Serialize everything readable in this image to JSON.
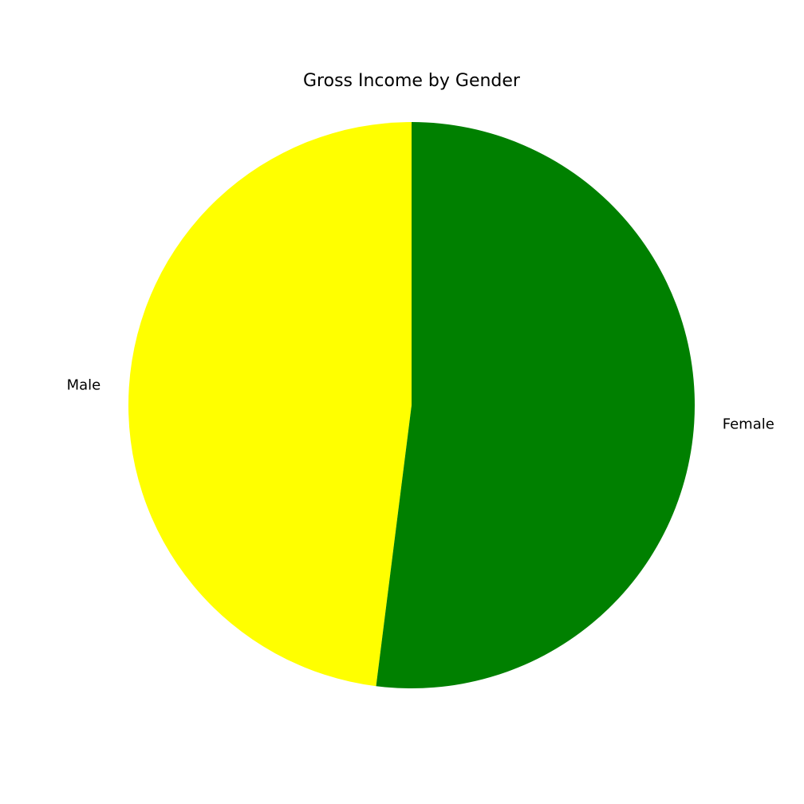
{
  "chart_data": {
    "type": "pie",
    "title": "Gross Income by Gender",
    "start_angle_deg": 90,
    "direction": "counterclockwise",
    "slices": [
      {
        "label": "Male",
        "value": 48.0,
        "color": "#ffff00"
      },
      {
        "label": "Female",
        "value": 52.0,
        "color": "#008000"
      }
    ]
  }
}
